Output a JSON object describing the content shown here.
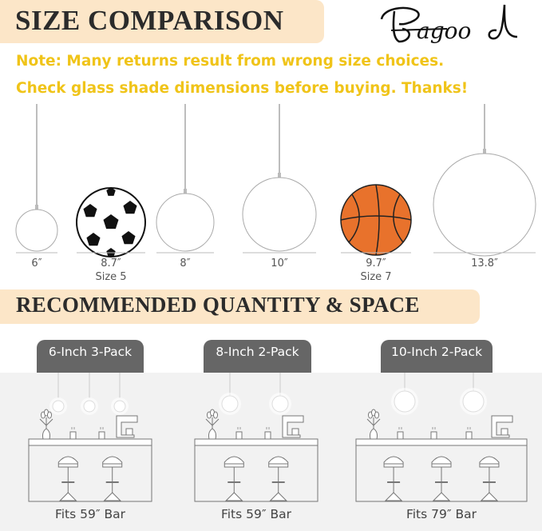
{
  "header": {
    "title": "SIZE COMPARISON",
    "logo": "Bagood"
  },
  "note": {
    "line1": "Note: Many returns result from wrong size choices.",
    "line2": "Check glass shade dimensions before buying. Thanks!"
  },
  "sizes": [
    {
      "label": "6″",
      "sub": "",
      "kind": "globe"
    },
    {
      "label": "8.7″",
      "sub": "Size 5",
      "kind": "soccer-ball"
    },
    {
      "label": "8″",
      "sub": "",
      "kind": "globe"
    },
    {
      "label": "10″",
      "sub": "",
      "kind": "globe"
    },
    {
      "label": "9.7″",
      "sub": "Size 7",
      "kind": "basketball"
    },
    {
      "label": "13.8″",
      "sub": "",
      "kind": "globe"
    }
  ],
  "section2": {
    "title": "RECOMMENDED QUANTITY & SPACE"
  },
  "packs": [
    {
      "tab": "6-Inch  3-Pack",
      "fits": "Fits 59″ Bar",
      "lights": 3,
      "stools": 2
    },
    {
      "tab": "8-Inch  2-Pack",
      "fits": "Fits 59″ Bar",
      "lights": 2,
      "stools": 2
    },
    {
      "tab": "10-Inch 2-Pack",
      "fits": "Fits 79″ Bar",
      "lights": 2,
      "stools": 3
    }
  ],
  "colors": {
    "band": "#fce6c8",
    "note": "#f0c419",
    "tab": "#666666",
    "basketball": "#e8722c"
  }
}
